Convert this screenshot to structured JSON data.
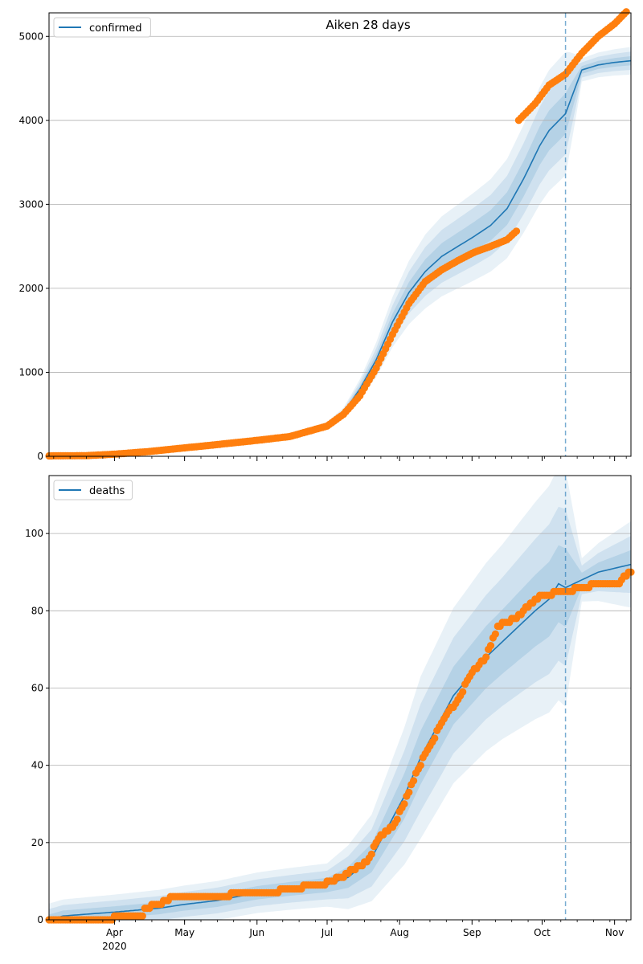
{
  "figure": {
    "title": "Aiken 28 days"
  },
  "colors": {
    "model": "#1f77b4",
    "observed": "#ff7f0e",
    "band": "#1f77b4",
    "grid": "#b0b0b0",
    "forecast_line": "#1f77b4"
  },
  "x_axis": {
    "start": "2020-03-04",
    "end": "2020-11-08",
    "forecast_start": "2020-10-11",
    "months": [
      {
        "label": "Apr",
        "date": "2020-04-01"
      },
      {
        "label": "May",
        "date": "2020-05-01"
      },
      {
        "label": "Jun",
        "date": "2020-06-01"
      },
      {
        "label": "Jul",
        "date": "2020-07-01"
      },
      {
        "label": "Aug",
        "date": "2020-08-01"
      },
      {
        "label": "Sep",
        "date": "2020-09-01"
      },
      {
        "label": "Oct",
        "date": "2020-10-01"
      },
      {
        "label": "Nov",
        "date": "2020-11-01"
      }
    ],
    "year_label": "2020"
  },
  "chart_data": [
    {
      "type": "line",
      "legend": "confirmed",
      "legend_position": "top-left",
      "grid": true,
      "ylim": [
        0,
        5280
      ],
      "yticks": [
        "0",
        "1000",
        "2000",
        "3000",
        "4000",
        "5000"
      ],
      "yticks_values": [
        0,
        1000,
        2000,
        3000,
        4000,
        5000
      ],
      "model": [
        [
          "2020-03-04",
          0
        ],
        [
          "2020-03-20",
          5
        ],
        [
          "2020-04-01",
          20
        ],
        [
          "2020-04-15",
          60
        ],
        [
          "2020-05-01",
          110
        ],
        [
          "2020-05-15",
          150
        ],
        [
          "2020-06-01",
          200
        ],
        [
          "2020-06-15",
          240
        ],
        [
          "2020-07-01",
          380
        ],
        [
          "2020-07-08",
          520
        ],
        [
          "2020-07-15",
          800
        ],
        [
          "2020-07-22",
          1150
        ],
        [
          "2020-07-29",
          1600
        ],
        [
          "2020-08-05",
          1950
        ],
        [
          "2020-08-12",
          2200
        ],
        [
          "2020-08-19",
          2380
        ],
        [
          "2020-08-26",
          2500
        ],
        [
          "2020-09-02",
          2620
        ],
        [
          "2020-09-09",
          2750
        ],
        [
          "2020-09-16",
          2950
        ],
        [
          "2020-09-23",
          3300
        ],
        [
          "2020-09-30",
          3700
        ],
        [
          "2020-10-04",
          3880
        ],
        [
          "2020-10-11",
          4080
        ],
        [
          "2020-10-18",
          4600
        ],
        [
          "2020-10-25",
          4660
        ],
        [
          "2020-11-01",
          4690
        ],
        [
          "2020-11-08",
          4710
        ]
      ],
      "band_widths": [
        [
          "2020-03-04",
          0.05
        ],
        [
          "2020-07-01",
          0.08
        ],
        [
          "2020-07-22",
          0.18
        ],
        [
          "2020-08-12",
          0.2
        ],
        [
          "2020-09-16",
          0.2
        ],
        [
          "2020-10-11",
          0.18
        ],
        [
          "2020-10-18",
          0.03
        ],
        [
          "2020-11-08",
          0.035
        ]
      ],
      "observed": [
        [
          "2020-03-04",
          5
        ],
        [
          "2020-03-20",
          8
        ],
        [
          "2020-04-01",
          25
        ],
        [
          "2020-04-15",
          55
        ],
        [
          "2020-05-01",
          100
        ],
        [
          "2020-05-15",
          140
        ],
        [
          "2020-06-01",
          190
        ],
        [
          "2020-06-15",
          235
        ],
        [
          "2020-07-01",
          360
        ],
        [
          "2020-07-08",
          500
        ],
        [
          "2020-07-15",
          720
        ],
        [
          "2020-07-22",
          1050
        ],
        [
          "2020-07-29",
          1450
        ],
        [
          "2020-08-05",
          1820
        ],
        [
          "2020-08-12",
          2080
        ],
        [
          "2020-08-19",
          2220
        ],
        [
          "2020-08-26",
          2330
        ],
        [
          "2020-09-02",
          2430
        ],
        [
          "2020-09-09",
          2500
        ],
        [
          "2020-09-16",
          2580
        ],
        [
          "2020-09-20",
          2680
        ],
        [
          "2020-09-21",
          4000
        ],
        [
          "2020-09-28",
          4200
        ],
        [
          "2020-10-04",
          4420
        ],
        [
          "2020-10-11",
          4550
        ],
        [
          "2020-10-18",
          4800
        ],
        [
          "2020-10-25",
          5000
        ],
        [
          "2020-11-01",
          5150
        ],
        [
          "2020-11-08",
          5350
        ]
      ]
    },
    {
      "type": "line",
      "legend": "deaths",
      "legend_position": "top-left",
      "grid": true,
      "ylim": [
        0,
        115
      ],
      "yticks": [
        "0",
        "20",
        "40",
        "60",
        "80",
        "100"
      ],
      "yticks_values": [
        0,
        20,
        40,
        60,
        80,
        100
      ],
      "model": [
        [
          "2020-03-04",
          0
        ],
        [
          "2020-03-10",
          1
        ],
        [
          "2020-04-01",
          2
        ],
        [
          "2020-04-20",
          3
        ],
        [
          "2020-05-01",
          4
        ],
        [
          "2020-05-15",
          5
        ],
        [
          "2020-06-01",
          7
        ],
        [
          "2020-06-15",
          8
        ],
        [
          "2020-07-01",
          9
        ],
        [
          "2020-07-10",
          11
        ],
        [
          "2020-07-20",
          16
        ],
        [
          "2020-07-27",
          24
        ],
        [
          "2020-08-03",
          32
        ],
        [
          "2020-08-10",
          42
        ],
        [
          "2020-08-17",
          50
        ],
        [
          "2020-08-24",
          58
        ],
        [
          "2020-08-31",
          63
        ],
        [
          "2020-09-07",
          68
        ],
        [
          "2020-09-14",
          72
        ],
        [
          "2020-09-21",
          76
        ],
        [
          "2020-09-28",
          80
        ],
        [
          "2020-10-04",
          83
        ],
        [
          "2020-10-08",
          87
        ],
        [
          "2020-10-11",
          86
        ],
        [
          "2020-10-18",
          88
        ],
        [
          "2020-10-25",
          90
        ],
        [
          "2020-11-01",
          91
        ],
        [
          "2020-11-08",
          92
        ]
      ],
      "band_widths": [
        [
          "2020-03-04",
          3
        ],
        [
          "2020-07-01",
          4
        ],
        [
          "2020-07-20",
          8
        ],
        [
          "2020-08-10",
          15
        ],
        [
          "2020-09-14",
          18
        ],
        [
          "2020-10-11",
          22
        ],
        [
          "2020-10-18",
          4
        ],
        [
          "2020-11-08",
          8
        ]
      ],
      "observed": [
        [
          "2020-03-04",
          0
        ],
        [
          "2020-03-31",
          0
        ],
        [
          "2020-04-01",
          1
        ],
        [
          "2020-04-13",
          1
        ],
        [
          "2020-04-14",
          3
        ],
        [
          "2020-04-20",
          4
        ],
        [
          "2020-04-26",
          6
        ],
        [
          "2020-05-20",
          6
        ],
        [
          "2020-05-21",
          7
        ],
        [
          "2020-06-10",
          7
        ],
        [
          "2020-06-11",
          8
        ],
        [
          "2020-06-20",
          8
        ],
        [
          "2020-06-21",
          9
        ],
        [
          "2020-06-30",
          9
        ],
        [
          "2020-07-01",
          10
        ],
        [
          "2020-07-08",
          11
        ],
        [
          "2020-07-12",
          13
        ],
        [
          "2020-07-18",
          15
        ],
        [
          "2020-07-24",
          22
        ],
        [
          "2020-07-29",
          24
        ],
        [
          "2020-08-03",
          30
        ],
        [
          "2020-08-08",
          38
        ],
        [
          "2020-08-14",
          45
        ],
        [
          "2020-08-20",
          52
        ],
        [
          "2020-08-26",
          57
        ],
        [
          "2020-09-01",
          64
        ],
        [
          "2020-09-07",
          68
        ],
        [
          "2020-09-12",
          76
        ],
        [
          "2020-09-20",
          78
        ],
        [
          "2020-09-26",
          82
        ],
        [
          "2020-10-01",
          84
        ],
        [
          "2020-10-11",
          85
        ],
        [
          "2020-10-18",
          86
        ],
        [
          "2020-10-25",
          87
        ],
        [
          "2020-11-03",
          87
        ],
        [
          "2020-11-05",
          89
        ],
        [
          "2020-11-08",
          90
        ]
      ]
    }
  ]
}
